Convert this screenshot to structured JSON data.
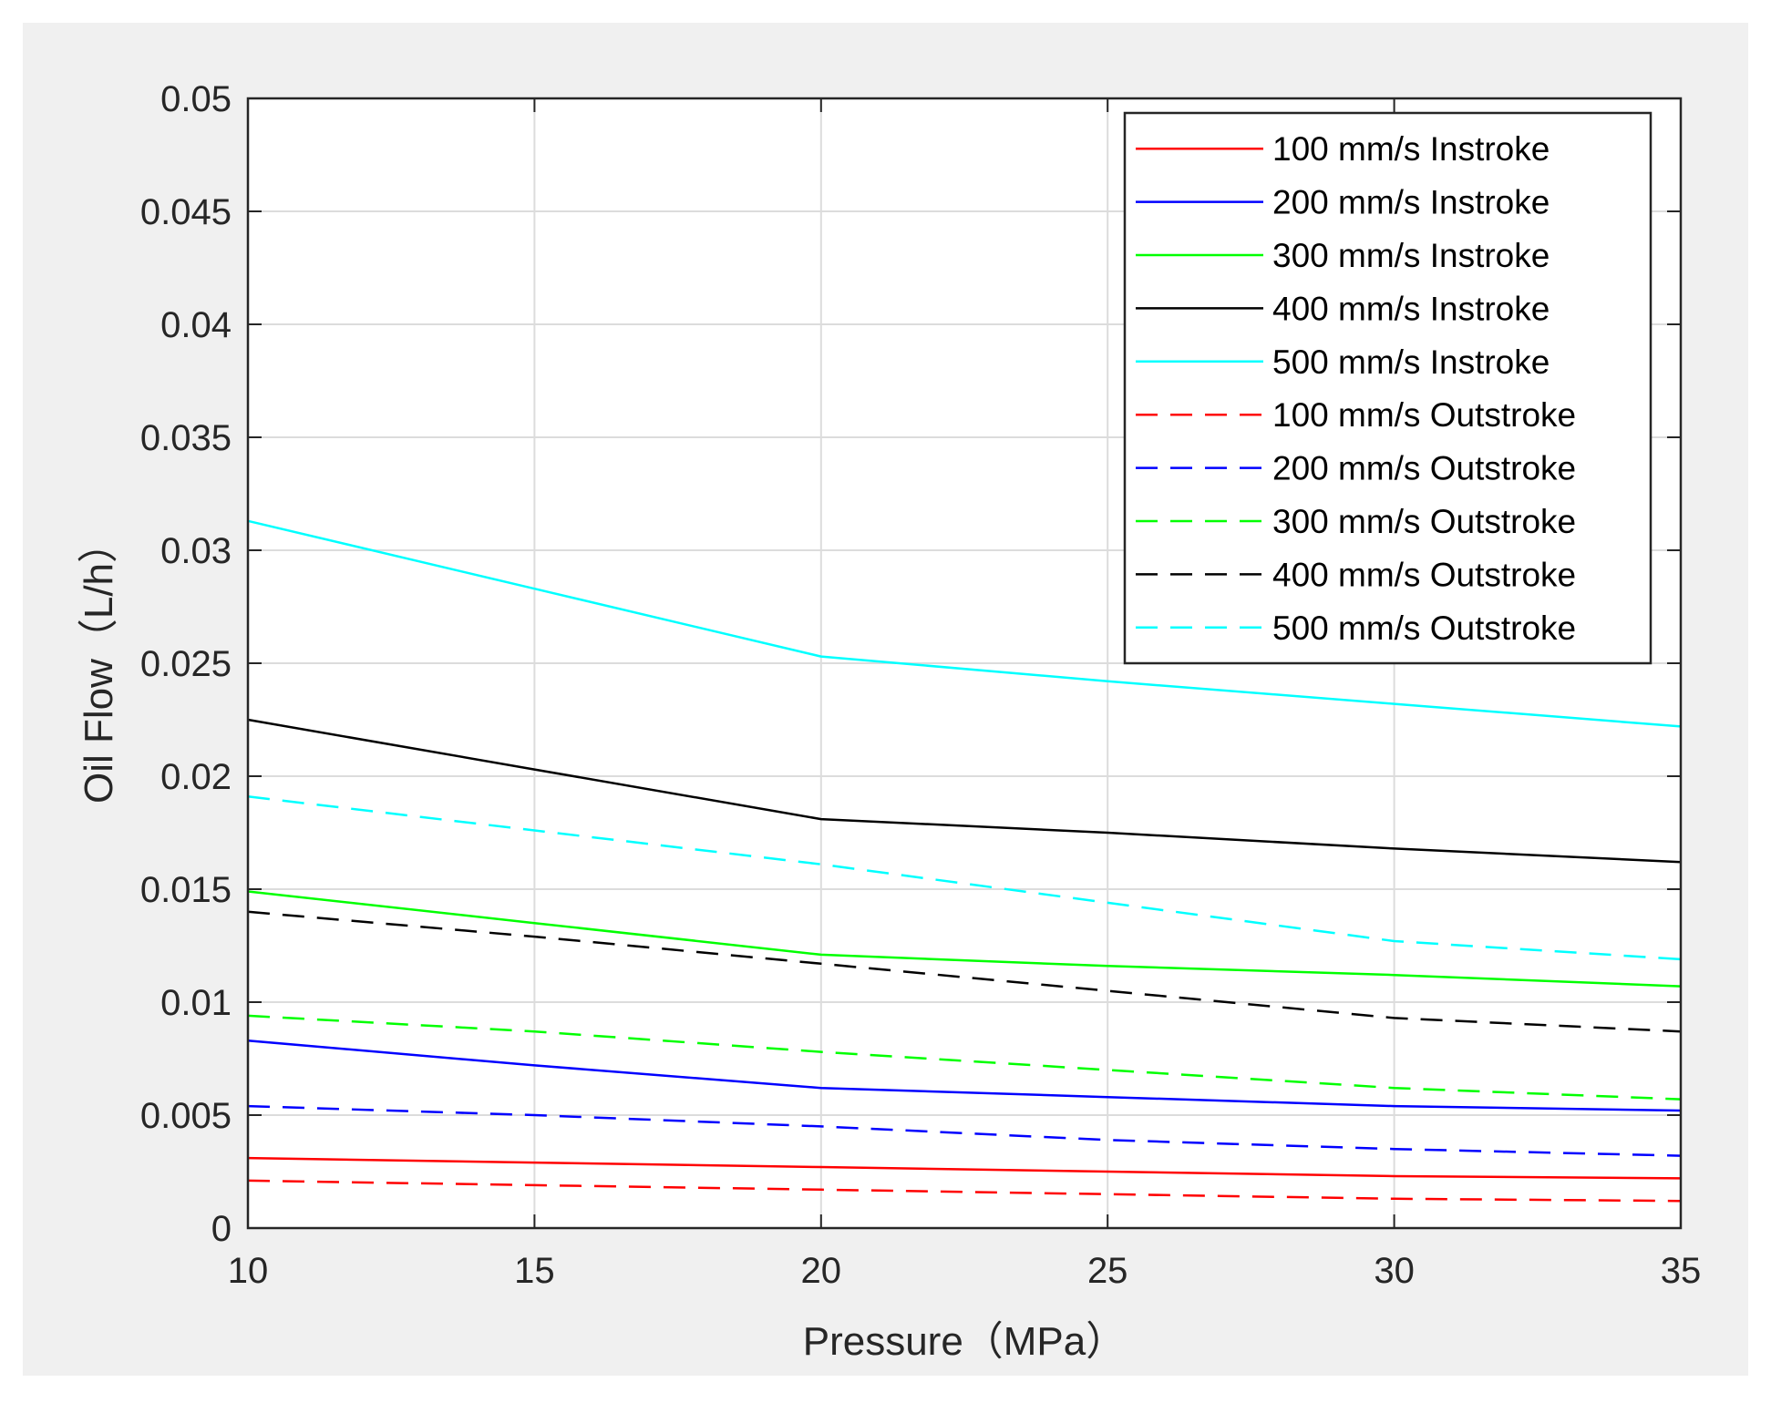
{
  "chart_data": {
    "type": "line",
    "title": "",
    "xlabel": "Pressure（MPa）",
    "ylabel": "Oil Flow（L/h）",
    "xlim": [
      10,
      35
    ],
    "ylim": [
      0,
      0.05
    ],
    "x_ticks": [
      10,
      15,
      20,
      25,
      30,
      35
    ],
    "x_tick_labels": [
      "10",
      "15",
      "20",
      "25",
      "30",
      "35"
    ],
    "y_ticks": [
      0,
      0.005,
      0.01,
      0.015,
      0.02,
      0.025,
      0.03,
      0.035,
      0.04,
      0.045,
      0.05
    ],
    "y_tick_labels": [
      "0",
      "0.005",
      "0.01",
      "0.015",
      "0.02",
      "0.025",
      "0.03",
      "0.035",
      "0.04",
      "0.045",
      "0.05"
    ],
    "grid": true,
    "legend_position": "top-right",
    "x": [
      10,
      15,
      20,
      25,
      30,
      35
    ],
    "series": [
      {
        "name": "100 mm/s Instroke",
        "color": "#ff0000",
        "dashed": false,
        "values": [
          0.0031,
          0.0029,
          0.0027,
          0.0025,
          0.0023,
          0.0022
        ]
      },
      {
        "name": "200 mm/s Instroke",
        "color": "#0000ff",
        "dashed": false,
        "values": [
          0.0083,
          0.0072,
          0.0062,
          0.0058,
          0.0054,
          0.0052
        ]
      },
      {
        "name": "300 mm/s Instroke",
        "color": "#00ff00",
        "dashed": false,
        "values": [
          0.0149,
          0.0135,
          0.0121,
          0.0116,
          0.0112,
          0.0107
        ]
      },
      {
        "name": "400 mm/s Instroke",
        "color": "#000000",
        "dashed": false,
        "values": [
          0.0225,
          0.0203,
          0.0181,
          0.0175,
          0.0168,
          0.0162
        ]
      },
      {
        "name": "500 mm/s Instroke",
        "color": "#00ffff",
        "dashed": false,
        "values": [
          0.0313,
          0.0283,
          0.0253,
          0.0242,
          0.0232,
          0.0222
        ]
      },
      {
        "name": "100 mm/s Outstroke",
        "color": "#ff0000",
        "dashed": true,
        "values": [
          0.0021,
          0.0019,
          0.0017,
          0.0015,
          0.0013,
          0.0012
        ]
      },
      {
        "name": "200 mm/s Outstroke",
        "color": "#0000ff",
        "dashed": true,
        "values": [
          0.0054,
          0.005,
          0.0045,
          0.0039,
          0.0035,
          0.0032
        ]
      },
      {
        "name": "300 mm/s Outstroke",
        "color": "#00ff00",
        "dashed": true,
        "values": [
          0.0094,
          0.0087,
          0.0078,
          0.007,
          0.0062,
          0.0057
        ]
      },
      {
        "name": "400 mm/s Outstroke",
        "color": "#000000",
        "dashed": true,
        "values": [
          0.014,
          0.0129,
          0.0117,
          0.0105,
          0.0093,
          0.0087
        ]
      },
      {
        "name": "500 mm/s Outstroke",
        "color": "#00ffff",
        "dashed": true,
        "values": [
          0.0191,
          0.0176,
          0.0161,
          0.0144,
          0.0127,
          0.0119
        ]
      }
    ]
  }
}
